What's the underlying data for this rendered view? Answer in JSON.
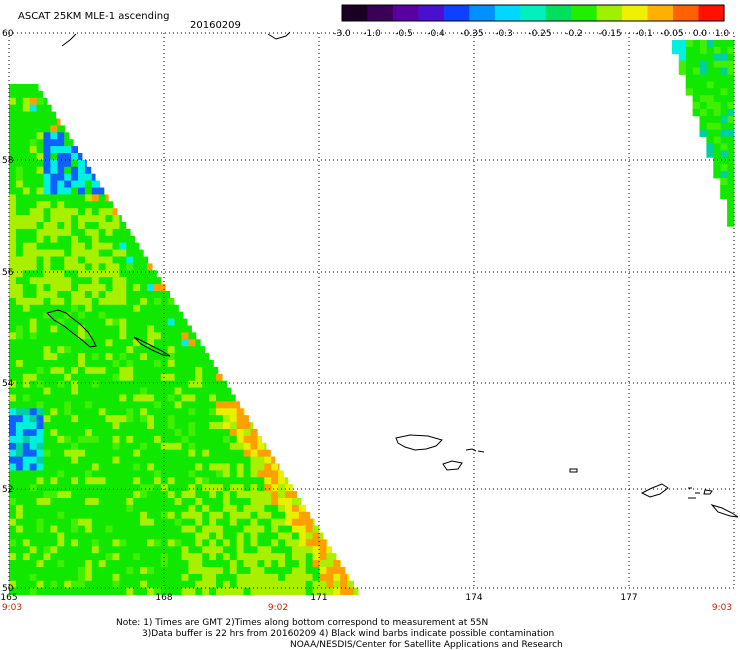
{
  "header": {
    "title": "ASCAT 25KM MLE-1 ascending",
    "date": "20160209"
  },
  "colorbar": {
    "labels": [
      "-3.0",
      "-1.0",
      "-0.5",
      "-0.4",
      "-0.35",
      "-0.3",
      "-0.25",
      "-0.2",
      "-0.15",
      "-0.1",
      "-0.05",
      "0.0",
      "1.0"
    ],
    "colors": [
      "#1a0022",
      "#3c005a",
      "#5a00a0",
      "#4a10d0",
      "#1040ff",
      "#0090ff",
      "#00d8ff",
      "#00f0c0",
      "#00e060",
      "#20f000",
      "#a0f000",
      "#f0f000",
      "#ffb000",
      "#ff6000",
      "#ff1000"
    ]
  },
  "map": {
    "lat_labels": [
      "50",
      "52",
      "54",
      "56",
      "58",
      "60"
    ],
    "lon_labels": [
      "165",
      "168",
      "171",
      "174",
      "177"
    ],
    "time_labels": [
      "9:03",
      "9:02",
      "9:03"
    ],
    "palette": {
      "lime": "#40f000",
      "green": "#10e800",
      "yellow_green": "#a8f000",
      "yellow": "#e8f000",
      "orange": "#ffa000",
      "cyan": "#00f0e0",
      "blue": "#1060ff",
      "teal": "#00d0a0"
    }
  },
  "footer": {
    "line1": "Note: 1) Times are GMT 2)Times along bottom correspond to measurement at 55N",
    "line2": "3)Data buffer is 22 hrs from 20160209 4) Black wind barbs indicate possible contamination",
    "line3": "NOAA/NESDIS/Center for Satellite Applications and Research"
  }
}
